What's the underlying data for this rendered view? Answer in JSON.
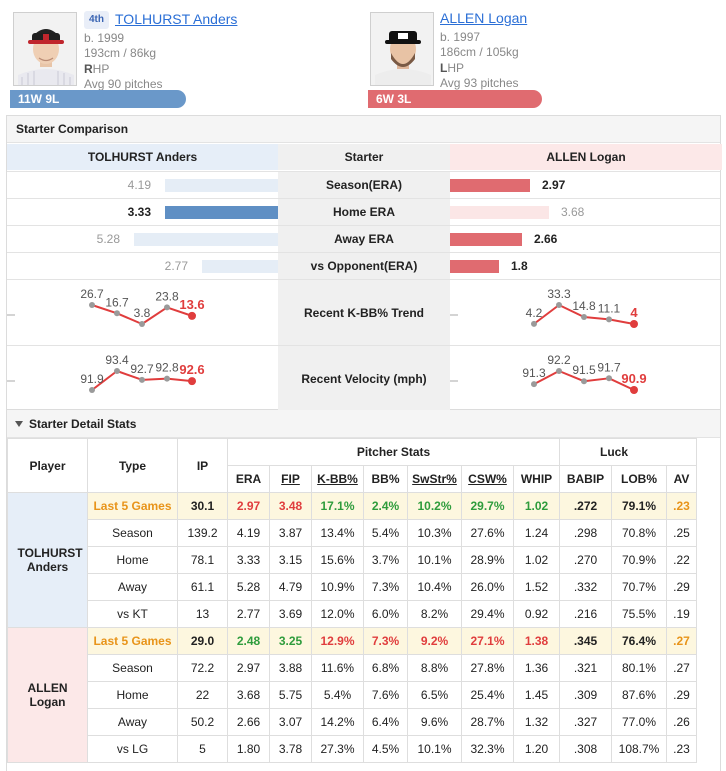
{
  "players": {
    "left": {
      "rank": "4th",
      "name": "TOLHURST Anders",
      "born": "b. 1999",
      "size": "193cm / 86kg",
      "hand_letter": "R",
      "hand_rest": "HP",
      "avg": "Avg 90 pitches",
      "record": "11W 9L",
      "color": "#6a98c9"
    },
    "right": {
      "name": "ALLEN Logan",
      "born": "b. 1997",
      "size": "186cm / 105kg",
      "hand_letter": "L",
      "hand_rest": "HP",
      "avg": "Avg 93 pitches",
      "record": "6W 3L",
      "color": "#e06b70"
    }
  },
  "comparison": {
    "title": "Starter Comparison",
    "left_header": "TOLHURST Anders",
    "mid_header": "Starter",
    "right_header": "ALLEN Logan",
    "rows": [
      {
        "label": "Season(ERA)",
        "left": "4.19",
        "right": "2.97"
      },
      {
        "label": "Home ERA",
        "left": "3.33",
        "right": "3.68"
      },
      {
        "label": "Away ERA",
        "left": "5.28",
        "right": "2.66"
      },
      {
        "label": "vs Opponent(ERA)",
        "left": "2.77",
        "right": "1.8"
      }
    ],
    "trends": [
      {
        "label": "Recent K-BB% Trend",
        "left": [
          "26.7",
          "16.7",
          "3.8",
          "23.8",
          "13.6"
        ],
        "right": [
          "4.2",
          "33.3",
          "14.8",
          "11.1",
          "4"
        ]
      },
      {
        "label": "Recent Velocity (mph)",
        "left": [
          "91.9",
          "93.4",
          "92.7",
          "92.8",
          "92.6"
        ],
        "right": [
          "91.3",
          "92.2",
          "91.5",
          "91.7",
          "90.9"
        ]
      }
    ]
  },
  "detail": {
    "title": "Starter Detail Stats",
    "headers": {
      "player": "Player",
      "type": "Type",
      "ip": "IP",
      "group1": "Pitcher Stats",
      "group2": "Luck",
      "cols": [
        "ERA",
        "FIP",
        "K-BB%",
        "BB%",
        "SwStr%",
        "CSW%",
        "WHIP",
        "BABIP",
        "LOB%",
        "AV"
      ]
    },
    "groups": [
      {
        "player": "TOLHURST Anders",
        "rows": [
          {
            "type": "Last 5 Games",
            "ip": "30.1",
            "vals": [
              "2.97",
              "3.48",
              "17.1%",
              "2.4%",
              "10.2%",
              "29.7%",
              "1.02",
              ".272",
              "79.1%",
              ".23"
            ]
          },
          {
            "type": "Season",
            "ip": "139.2",
            "vals": [
              "4.19",
              "3.87",
              "13.4%",
              "5.4%",
              "10.3%",
              "27.6%",
              "1.24",
              ".298",
              "70.8%",
              ".25"
            ]
          },
          {
            "type": "Home",
            "ip": "78.1",
            "vals": [
              "3.33",
              "3.15",
              "15.6%",
              "3.7%",
              "10.1%",
              "28.9%",
              "1.02",
              ".270",
              "70.9%",
              ".22"
            ]
          },
          {
            "type": "Away",
            "ip": "61.1",
            "vals": [
              "5.28",
              "4.79",
              "10.9%",
              "7.3%",
              "10.4%",
              "26.0%",
              "1.52",
              ".332",
              "70.7%",
              ".29"
            ]
          },
          {
            "type": "vs KT",
            "ip": "13",
            "vals": [
              "2.77",
              "3.69",
              "12.0%",
              "6.0%",
              "8.2%",
              "29.4%",
              "0.92",
              ".216",
              "75.5%",
              ".19"
            ]
          }
        ]
      },
      {
        "player": "ALLEN Logan",
        "rows": [
          {
            "type": "Last 5 Games",
            "ip": "29.0",
            "vals": [
              "2.48",
              "3.25",
              "12.9%",
              "7.3%",
              "9.2%",
              "27.1%",
              "1.38",
              ".345",
              "76.4%",
              ".27"
            ]
          },
          {
            "type": "Season",
            "ip": "72.2",
            "vals": [
              "2.97",
              "3.88",
              "11.6%",
              "6.8%",
              "8.8%",
              "27.8%",
              "1.36",
              ".321",
              "80.1%",
              ".27"
            ]
          },
          {
            "type": "Home",
            "ip": "22",
            "vals": [
              "3.68",
              "5.75",
              "5.4%",
              "7.6%",
              "6.5%",
              "25.4%",
              "1.45",
              ".309",
              "87.6%",
              ".29"
            ]
          },
          {
            "type": "Away",
            "ip": "50.2",
            "vals": [
              "2.66",
              "3.07",
              "14.2%",
              "6.4%",
              "9.6%",
              "28.7%",
              "1.32",
              ".327",
              "77.0%",
              ".26"
            ]
          },
          {
            "type": "vs LG",
            "ip": "5",
            "vals": [
              "1.80",
              "3.78",
              "27.3%",
              "4.5%",
              "10.1%",
              "32.3%",
              "1.20",
              ".308",
              "108.7%",
              ".23"
            ]
          }
        ]
      }
    ]
  }
}
